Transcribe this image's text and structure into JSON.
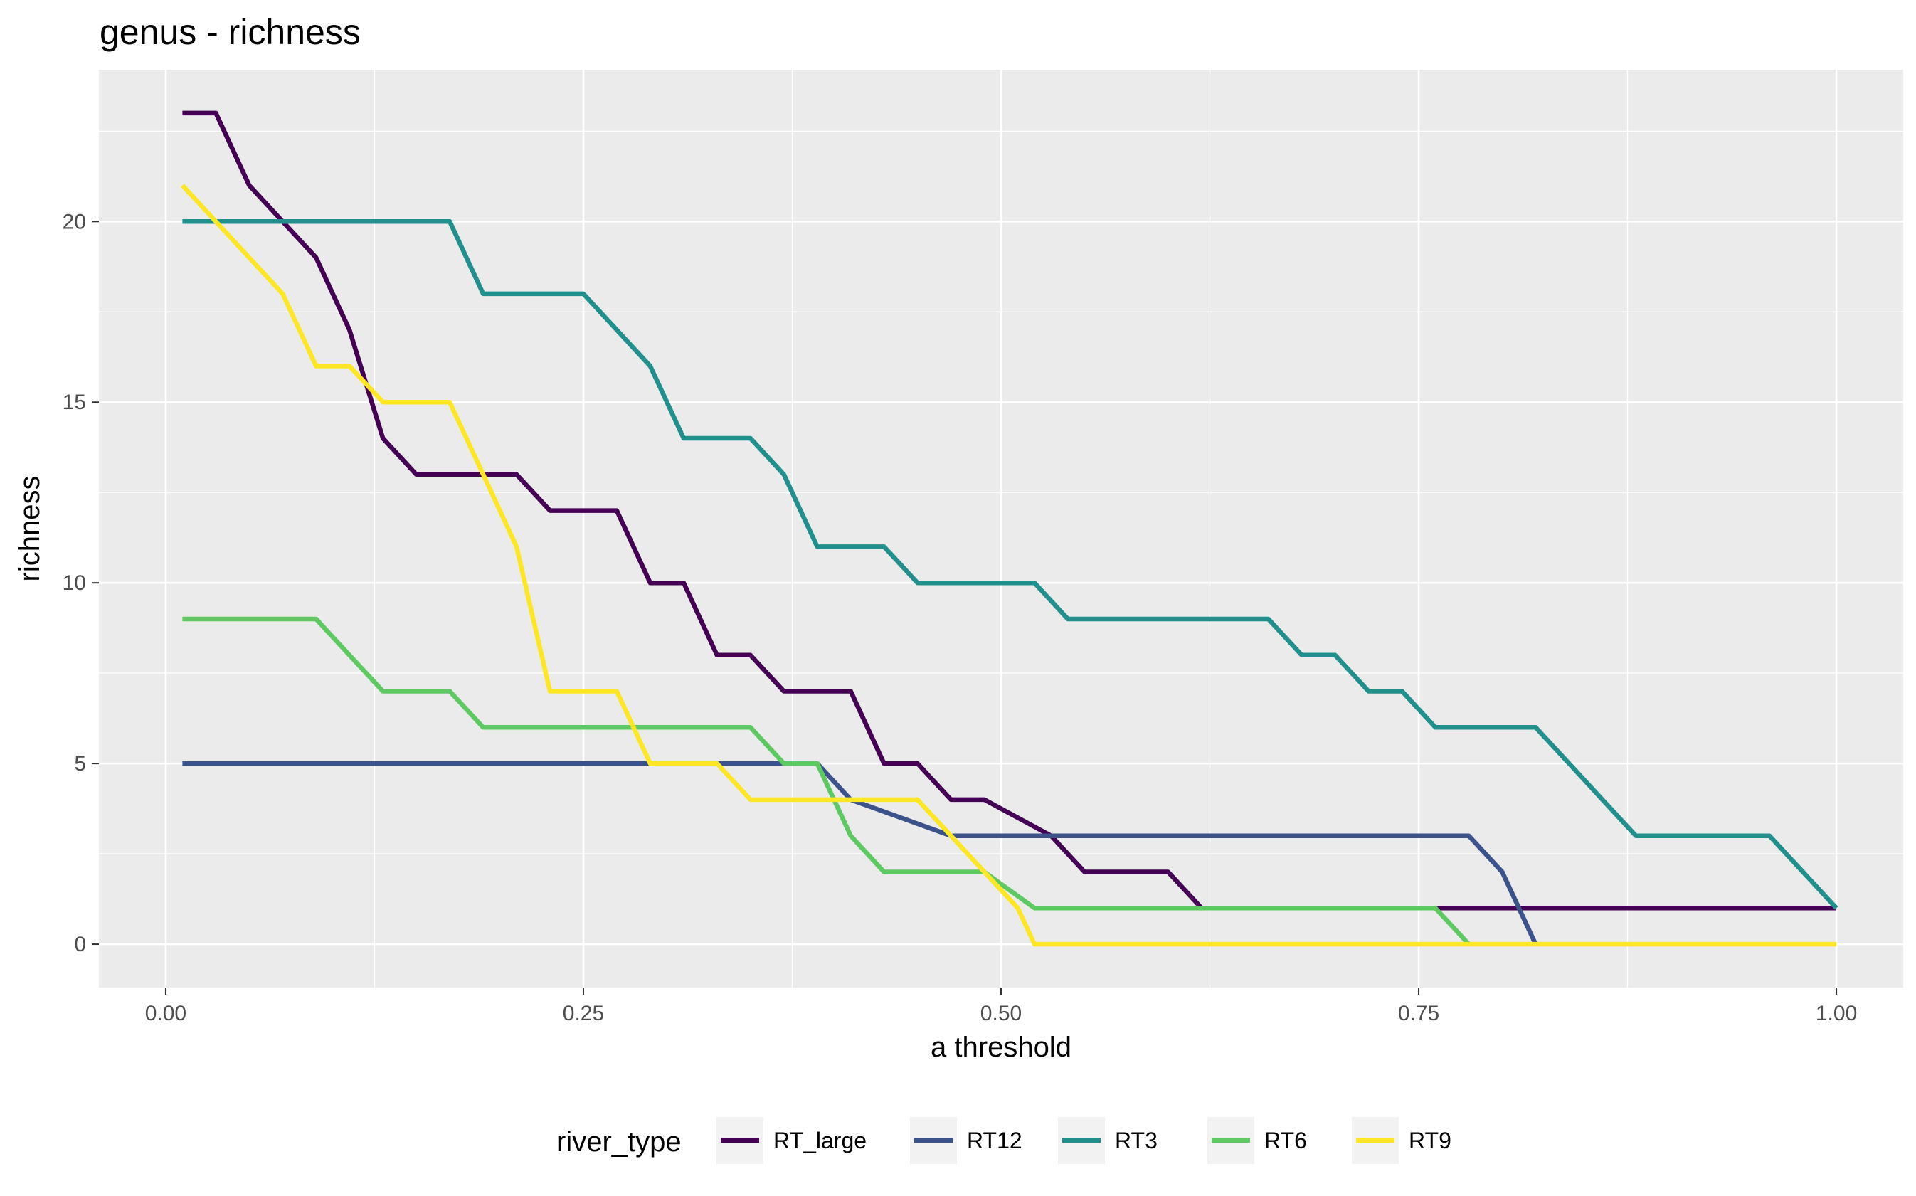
{
  "chart_data": {
    "type": "line",
    "title": "genus - richness",
    "xlabel": "a threshold",
    "ylabel": "richness",
    "xlim": [
      -0.04,
      1.04
    ],
    "ylim": [
      -1.2,
      24.2
    ],
    "x_ticks": [
      0.0,
      0.25,
      0.5,
      0.75,
      1.0
    ],
    "x_tick_labels": [
      "0.00",
      "0.25",
      "0.50",
      "0.75",
      "1.00"
    ],
    "y_ticks": [
      0,
      5,
      10,
      15,
      20
    ],
    "y_tick_labels": [
      "0",
      "5",
      "10",
      "15",
      "20"
    ],
    "grid": true,
    "legend": {
      "title": "river_type",
      "position": "bottom"
    },
    "series": [
      {
        "name": "RT_large",
        "color": "#440154",
        "x": [
          0.01,
          0.03,
          0.05,
          0.07,
          0.09,
          0.11,
          0.13,
          0.15,
          0.17,
          0.19,
          0.21,
          0.23,
          0.25,
          0.27,
          0.29,
          0.31,
          0.33,
          0.35,
          0.37,
          0.39,
          0.41,
          0.43,
          0.45,
          0.47,
          0.49,
          0.51,
          0.53,
          0.55,
          0.57,
          0.59,
          0.6,
          0.62,
          0.77,
          0.79,
          0.81,
          0.83,
          0.85,
          0.87,
          0.89,
          0.91,
          0.93,
          0.95,
          0.97,
          0.99,
          1.0
        ],
        "y": [
          23,
          23,
          21,
          20,
          19,
          17,
          14,
          13,
          13,
          13,
          13,
          12,
          12,
          12,
          10,
          10,
          8,
          8,
          7,
          7,
          7,
          5,
          5,
          4,
          4,
          3.5,
          3,
          2,
          2,
          2,
          2,
          1,
          1,
          1,
          1,
          1,
          1,
          1,
          1,
          1,
          1,
          1,
          1,
          1,
          1
        ]
      },
      {
        "name": "RT12",
        "color": "#3b528b",
        "x": [
          0.01,
          0.39,
          0.41,
          0.47,
          0.49,
          0.51,
          0.53,
          0.55,
          0.57,
          0.59,
          0.61,
          0.63,
          0.65,
          0.67,
          0.69,
          0.71,
          0.73,
          0.75,
          0.78,
          0.8,
          0.82
        ],
        "y": [
          5,
          5,
          4,
          3,
          3,
          3,
          3,
          3,
          3,
          3,
          3,
          3,
          3,
          3,
          3,
          3,
          3,
          3,
          3,
          2,
          0
        ]
      },
      {
        "name": "RT3",
        "color": "#21908c",
        "x": [
          0.01,
          0.03,
          0.05,
          0.07,
          0.09,
          0.11,
          0.13,
          0.15,
          0.17,
          0.19,
          0.21,
          0.23,
          0.25,
          0.27,
          0.29,
          0.31,
          0.33,
          0.35,
          0.37,
          0.39,
          0.41,
          0.43,
          0.45,
          0.47,
          0.49,
          0.51,
          0.52,
          0.54,
          0.56,
          0.58,
          0.6,
          0.62,
          0.64,
          0.66,
          0.68,
          0.7,
          0.72,
          0.74,
          0.76,
          0.78,
          0.8,
          0.82,
          0.84,
          0.86,
          0.88,
          0.9,
          0.92,
          0.94,
          0.96,
          0.98,
          1.0
        ],
        "y": [
          20,
          20,
          20,
          20,
          20,
          20,
          20,
          20,
          20,
          18,
          18,
          18,
          18,
          17,
          16,
          14,
          14,
          14,
          13,
          11,
          11,
          11,
          10,
          10,
          10,
          10,
          10,
          9,
          9,
          9,
          9,
          9,
          9,
          9,
          8,
          8,
          7,
          7,
          6,
          6,
          6,
          6,
          5,
          4,
          3,
          3,
          3,
          3,
          3,
          2,
          1
        ]
      },
      {
        "name": "RT6",
        "color": "#5ec962",
        "x": [
          0.01,
          0.03,
          0.05,
          0.07,
          0.09,
          0.11,
          0.13,
          0.15,
          0.17,
          0.19,
          0.21,
          0.23,
          0.25,
          0.27,
          0.29,
          0.31,
          0.33,
          0.35,
          0.37,
          0.39,
          0.41,
          0.43,
          0.45,
          0.47,
          0.49,
          0.52,
          0.54,
          0.56,
          0.58,
          0.6,
          0.62,
          0.64,
          0.66,
          0.68,
          0.7,
          0.72,
          0.74,
          0.76,
          0.78
        ],
        "y": [
          9,
          9,
          9,
          9,
          9,
          8,
          7,
          7,
          7,
          6,
          6,
          6,
          6,
          6,
          6,
          6,
          6,
          6,
          5,
          5,
          3,
          2,
          2,
          2,
          2,
          1,
          1,
          1,
          1,
          1,
          1,
          1,
          1,
          1,
          1,
          1,
          1,
          1,
          0
        ]
      },
      {
        "name": "RT9",
        "color": "#fde725",
        "x": [
          0.01,
          0.03,
          0.05,
          0.07,
          0.09,
          0.11,
          0.13,
          0.15,
          0.17,
          0.19,
          0.21,
          0.23,
          0.25,
          0.27,
          0.29,
          0.31,
          0.33,
          0.35,
          0.37,
          0.39,
          0.41,
          0.43,
          0.45,
          0.47,
          0.49,
          0.51,
          0.52,
          0.56,
          0.6,
          0.64,
          0.68,
          0.72,
          0.76,
          0.8,
          0.84,
          0.88,
          0.92,
          0.96,
          1.0
        ],
        "y": [
          21,
          20,
          19,
          18,
          16,
          16,
          15,
          15,
          15,
          13,
          11,
          7,
          7,
          7,
          5,
          5,
          5,
          4,
          4,
          4,
          4,
          4,
          4,
          3,
          2,
          1,
          0,
          0,
          0,
          0,
          0,
          0,
          0,
          0,
          0,
          0,
          0,
          0,
          0
        ]
      }
    ]
  }
}
